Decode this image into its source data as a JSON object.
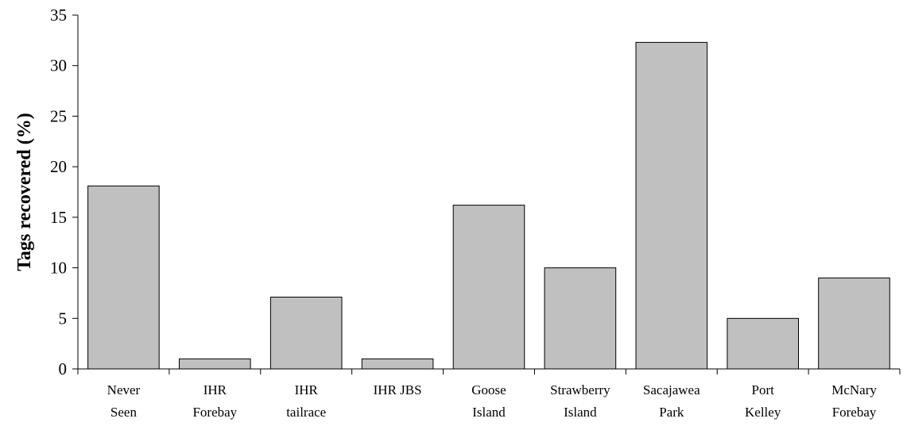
{
  "chart_data": {
    "type": "bar",
    "categories": [
      [
        "Never",
        "Seen"
      ],
      [
        "IHR",
        "Forebay"
      ],
      [
        "IHR",
        "tailrace"
      ],
      [
        "IHR JBS"
      ],
      [
        "Goose",
        "Island"
      ],
      [
        "Strawberry",
        "Island"
      ],
      [
        "Sacajawea",
        "Park"
      ],
      [
        "Port",
        "Kelley"
      ],
      [
        "McNary",
        "Forebay"
      ]
    ],
    "values": [
      18.1,
      1.0,
      7.1,
      1.0,
      16.2,
      10.0,
      32.3,
      5.0,
      9.0
    ],
    "ylabel": "Tags recovered (%)",
    "xlabel": "",
    "ylim": [
      0,
      35
    ],
    "yticks": [
      0,
      5,
      10,
      15,
      20,
      25,
      30,
      35
    ],
    "grid": false,
    "colors": {
      "bar_fill": "#c0c0c0",
      "bar_edge": "#000000"
    }
  }
}
